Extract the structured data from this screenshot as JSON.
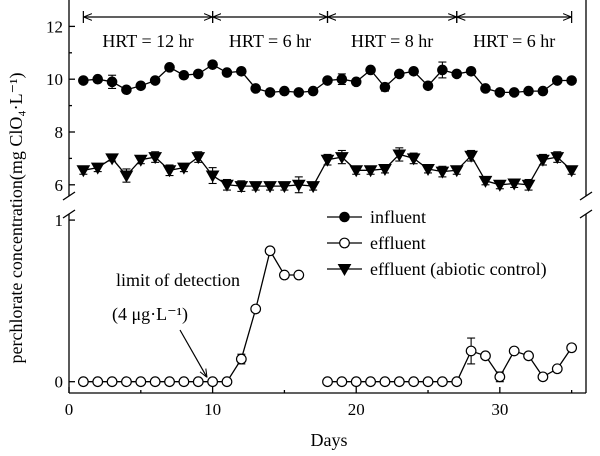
{
  "chart_data": {
    "type": "line",
    "xlabel": "Days",
    "ylabel": "perchlorate concentration(mg ClO₄·L⁻¹)",
    "xlim": [
      0,
      36
    ],
    "x_ticks": [
      "0",
      "10",
      "20",
      "30"
    ],
    "upper_panel": {
      "ylim": [
        5.5,
        13
      ],
      "y_ticks": [
        "6",
        "8",
        "10",
        "12"
      ]
    },
    "lower_panel": {
      "ylim": [
        -0.07,
        1.05
      ],
      "y_ticks": [
        "0",
        "1"
      ]
    },
    "hrt_periods": [
      {
        "label": "HRT = 12 hr",
        "start": 1,
        "end": 10
      },
      {
        "label": "HRT = 6 hr",
        "start": 10,
        "end": 18
      },
      {
        "label": "HRT = 8 hr",
        "start": 18,
        "end": 27
      },
      {
        "label": "HRT = 6 hr",
        "start": 27,
        "end": 35
      }
    ],
    "x": [
      1,
      2,
      3,
      4,
      5,
      6,
      7,
      8,
      9,
      10,
      11,
      12,
      13,
      14,
      15,
      16,
      17,
      18,
      19,
      20,
      21,
      22,
      23,
      24,
      25,
      26,
      27,
      28,
      29,
      30,
      31,
      32,
      33,
      34,
      35
    ],
    "series": [
      {
        "name": "influent",
        "marker": "circle-filled",
        "panel": "upper",
        "values": [
          9.95,
          10.0,
          9.9,
          9.6,
          9.75,
          9.95,
          10.45,
          10.15,
          10.2,
          10.55,
          10.25,
          10.3,
          9.65,
          9.5,
          9.55,
          9.5,
          9.55,
          9.95,
          10.0,
          9.9,
          10.35,
          9.7,
          10.2,
          10.3,
          9.75,
          10.35,
          10.2,
          10.3,
          9.65,
          9.5,
          9.5,
          9.55,
          9.55,
          9.95,
          9.95
        ],
        "error": [
          0.1,
          0.1,
          0.25,
          0.1,
          0.1,
          0.1,
          0.1,
          0.1,
          0.1,
          0.1,
          0.1,
          0.1,
          0.1,
          0.1,
          0.1,
          0.1,
          0.1,
          0.1,
          0.2,
          0.1,
          0.1,
          0.15,
          0.1,
          0.1,
          0.1,
          0.3,
          0.1,
          0.1,
          0.1,
          0.1,
          0.1,
          0.1,
          0.1,
          0.1,
          0.1
        ]
      },
      {
        "name": "effluent (abiotic control)",
        "marker": "triangle-down-filled",
        "panel": "upper",
        "values": [
          6.55,
          6.65,
          7.0,
          6.35,
          6.95,
          7.05,
          6.55,
          6.65,
          7.05,
          6.35,
          6.0,
          5.95,
          5.95,
          5.95,
          5.95,
          6.0,
          5.95,
          6.95,
          7.05,
          6.55,
          6.55,
          6.6,
          7.15,
          7.0,
          6.6,
          6.5,
          6.55,
          7.1,
          6.15,
          6.0,
          6.05,
          6.0,
          6.95,
          7.05,
          6.55
        ],
        "error": [
          0.15,
          0.15,
          0.1,
          0.25,
          0.15,
          0.2,
          0.2,
          0.15,
          0.2,
          0.3,
          0.2,
          0.2,
          0.15,
          0.15,
          0.15,
          0.3,
          0.15,
          0.2,
          0.25,
          0.15,
          0.15,
          0.15,
          0.25,
          0.2,
          0.15,
          0.2,
          0.15,
          0.2,
          0.15,
          0.15,
          0.15,
          0.2,
          0.2,
          0.2,
          0.15
        ]
      },
      {
        "name": "effluent",
        "marker": "circle-open",
        "panel": "lower",
        "values": [
          0,
          0,
          0,
          0,
          0,
          0,
          0,
          0,
          0,
          0,
          0,
          0.14,
          0.45,
          0.81,
          0.66,
          0.66,
          null,
          0,
          0,
          0,
          0,
          0,
          0,
          0,
          0,
          0,
          0,
          0.19,
          0.16,
          0.03,
          0.19,
          0.16,
          0.03,
          0.08,
          0.21
        ],
        "error": [
          0,
          0,
          0,
          0,
          0,
          0,
          0,
          0,
          0,
          0,
          0,
          0.03,
          0,
          0.02,
          0,
          0,
          0,
          0,
          0,
          0,
          0,
          0,
          0,
          0,
          0,
          0,
          0,
          0.08,
          0.01,
          0.03,
          0,
          0,
          0,
          0,
          0.02
        ]
      }
    ],
    "legend": {
      "position": "right-middle",
      "entries": [
        "influent",
        "effluent",
        "effluent (abiotic control)"
      ]
    },
    "annotations": [
      {
        "text": "limit of detection",
        "subtext": "(4 μg·L⁻¹)",
        "points_to_x": 10,
        "points_to_y": 0
      }
    ]
  }
}
